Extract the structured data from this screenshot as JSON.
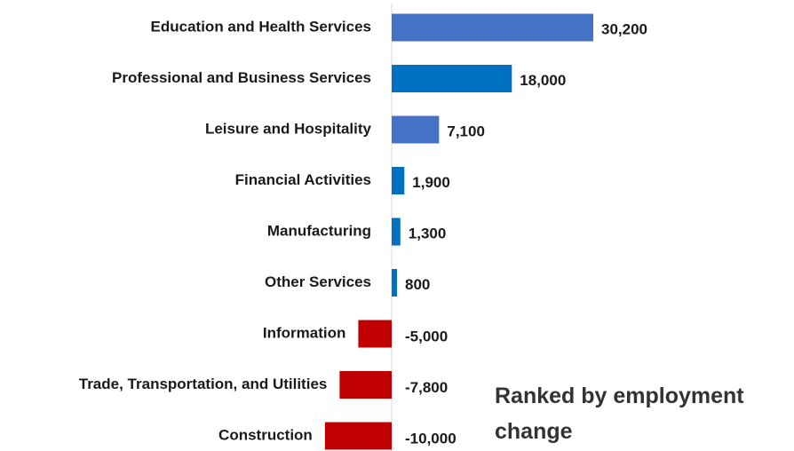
{
  "chart_data": {
    "type": "bar",
    "orientation": "horizontal",
    "categories": [
      "Education and Health Services",
      "Professional and Business Services",
      "Leisure and Hospitality",
      "Financial Activities",
      "Manufacturing",
      "Other Services",
      "Information",
      "Trade, Transportation, and Utilities",
      "Construction"
    ],
    "values": [
      30200,
      18000,
      7100,
      1900,
      1300,
      800,
      -5000,
      -7800,
      -10000
    ],
    "value_labels": [
      "30,200",
      "18,000",
      "7,100",
      "1,900",
      "1,300",
      "800",
      "-5,000",
      "-7,800",
      "-10,000"
    ],
    "colors": [
      "#4472c4",
      "#0070c0",
      "#4472c4",
      "#0070c0",
      "#0070c0",
      "#0070c0",
      "#c00000",
      "#c00000",
      "#c00000"
    ],
    "annotation": "Ranked by employment change"
  }
}
